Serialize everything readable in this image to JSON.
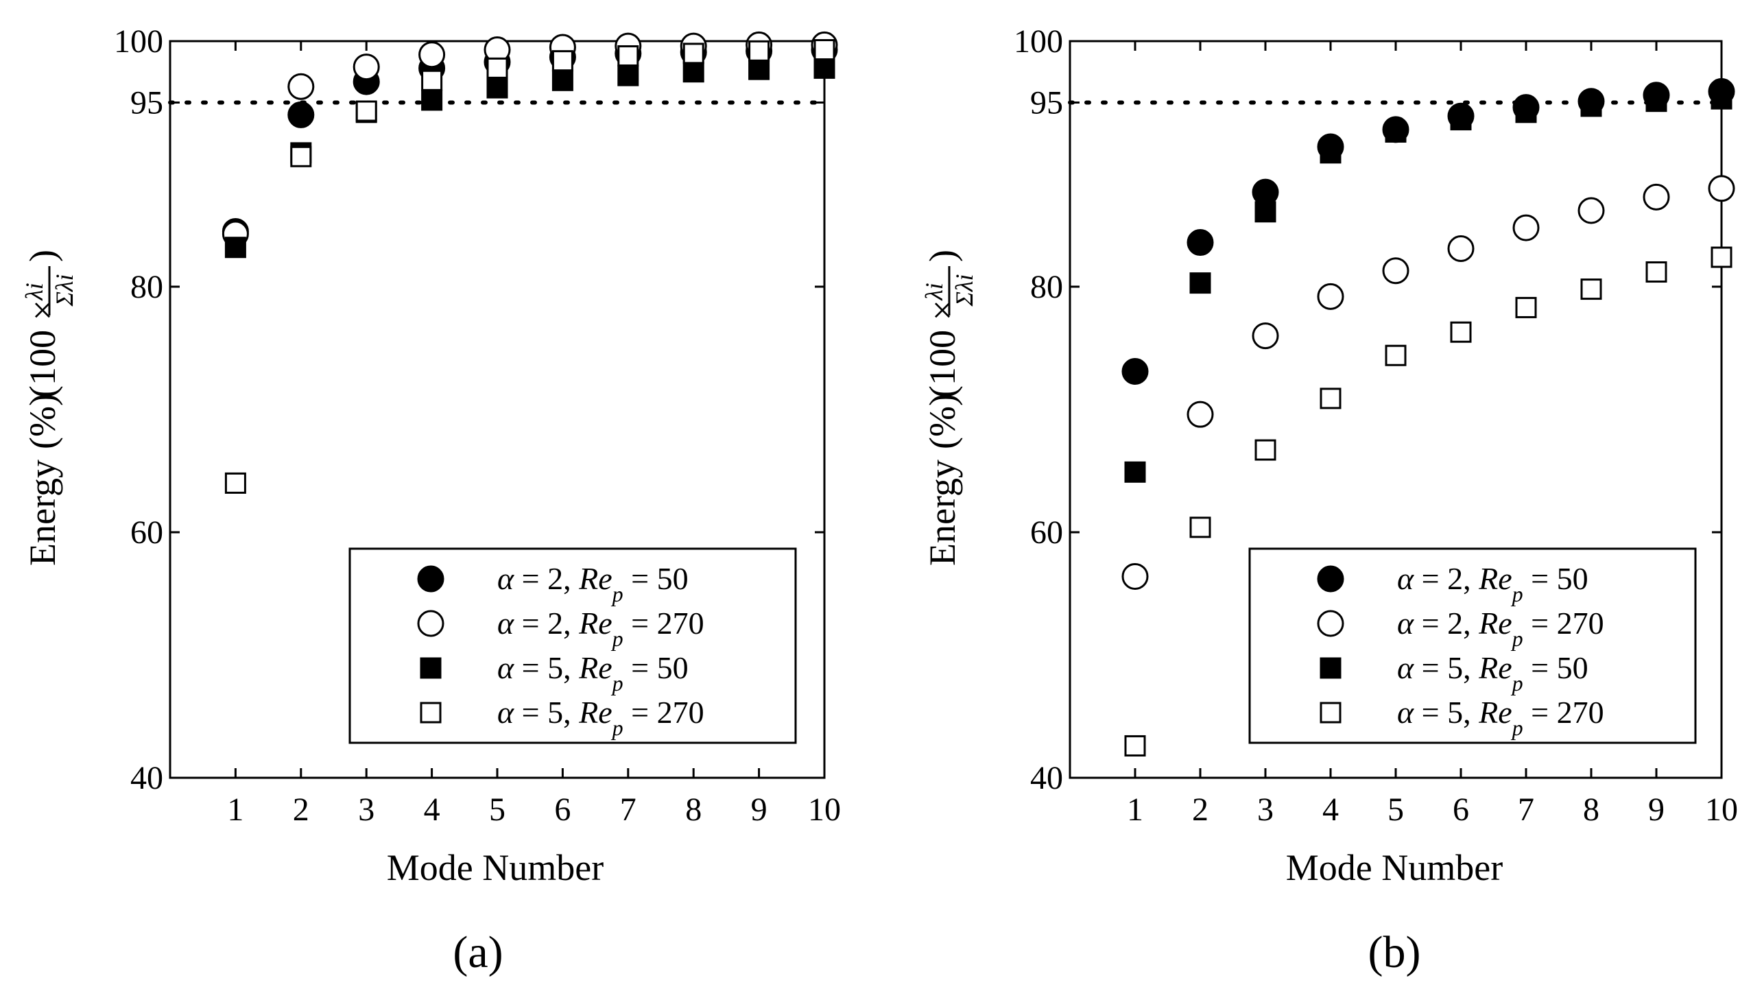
{
  "figure": {
    "panels": [
      "a",
      "b"
    ]
  },
  "chart_data": [
    {
      "type": "scatter",
      "caption": "(a)",
      "title": "",
      "xlabel": "Mode Number",
      "ylabel": "Energy (%)(100 × λi/Σλi)",
      "ylabel_main": "Energy",
      "ylabel_unit": "(%)",
      "ylabel_factor": "(100 ×",
      "ylabel_num": "λi",
      "ylabel_den": "Σλi",
      "ylabel_close": ")",
      "xlim": [
        0,
        10
      ],
      "ylim": [
        40,
        100
      ],
      "x": [
        1,
        2,
        3,
        4,
        5,
        6,
        7,
        8,
        9,
        10
      ],
      "xticks": [
        "1",
        "2",
        "3",
        "4",
        "5",
        "6",
        "7",
        "8",
        "9",
        "10"
      ],
      "yticks": [
        40,
        60,
        80,
        95,
        100
      ],
      "ytick_labels": [
        "40",
        "60",
        "80",
        "95",
        "100"
      ],
      "reference_line": 95,
      "legend_position": "bottom-right",
      "series": [
        {
          "name": "α = 2, Rep = 50",
          "alpha": "2",
          "re": "50",
          "marker": "circle",
          "filled": true,
          "values": [
            84.5,
            94.0,
            96.7,
            97.8,
            98.3,
            98.7,
            99.0,
            99.1,
            99.2,
            99.3
          ]
        },
        {
          "name": "α = 2, Rep = 270",
          "alpha": "2",
          "re": "270",
          "marker": "circle",
          "filled": false,
          "values": [
            84.3,
            96.3,
            97.9,
            98.9,
            99.3,
            99.5,
            99.6,
            99.6,
            99.7,
            99.7
          ]
        },
        {
          "name": "α = 5, Rep = 50",
          "alpha": "5",
          "re": "50",
          "marker": "square",
          "filled": true,
          "values": [
            83.2,
            90.9,
            94.2,
            95.2,
            96.2,
            96.8,
            97.2,
            97.5,
            97.7,
            97.8
          ]
        },
        {
          "name": "α = 5, Rep = 270",
          "alpha": "5",
          "re": "270",
          "marker": "square",
          "filled": false,
          "values": [
            64.0,
            90.6,
            94.3,
            96.8,
            97.8,
            98.4,
            98.8,
            99.0,
            99.2,
            99.3
          ]
        }
      ]
    },
    {
      "type": "scatter",
      "caption": "(b)",
      "title": "",
      "xlabel": "Mode Number",
      "ylabel": "Energy (%)(100 × λi/Σλi)",
      "ylabel_main": "Energy",
      "ylabel_unit": "(%)",
      "ylabel_factor": "(100 ×",
      "ylabel_num": "λi",
      "ylabel_den": "Σλi",
      "ylabel_close": ")",
      "xlim": [
        0,
        10
      ],
      "ylim": [
        40,
        100
      ],
      "x": [
        1,
        2,
        3,
        4,
        5,
        6,
        7,
        8,
        9,
        10
      ],
      "xticks": [
        "1",
        "2",
        "3",
        "4",
        "5",
        "6",
        "7",
        "8",
        "9",
        "10"
      ],
      "yticks": [
        40,
        60,
        80,
        95,
        100
      ],
      "ytick_labels": [
        "40",
        "60",
        "80",
        "95",
        "100"
      ],
      "reference_line": 95,
      "legend_position": "bottom-right",
      "series": [
        {
          "name": "α = 2, Rep = 50",
          "alpha": "2",
          "re": "50",
          "marker": "circle",
          "filled": true,
          "values": [
            73.1,
            83.6,
            87.7,
            91.4,
            92.8,
            93.9,
            94.6,
            95.1,
            95.6,
            95.9
          ]
        },
        {
          "name": "α = 2, Rep = 270",
          "alpha": "2",
          "re": "270",
          "marker": "circle",
          "filled": false,
          "values": [
            56.4,
            69.6,
            76.0,
            79.2,
            81.3,
            83.1,
            84.8,
            86.2,
            87.3,
            88.0
          ]
        },
        {
          "name": "α = 5, Rep = 50",
          "alpha": "5",
          "re": "50",
          "marker": "square",
          "filled": true,
          "values": [
            64.9,
            80.3,
            86.1,
            90.9,
            92.6,
            93.6,
            94.2,
            94.7,
            95.1,
            95.3
          ]
        },
        {
          "name": "α = 5, Rep = 270",
          "alpha": "5",
          "re": "270",
          "marker": "square",
          "filled": false,
          "values": [
            42.6,
            60.4,
            66.7,
            70.9,
            74.4,
            76.3,
            78.3,
            79.8,
            81.2,
            82.4
          ]
        }
      ]
    }
  ]
}
